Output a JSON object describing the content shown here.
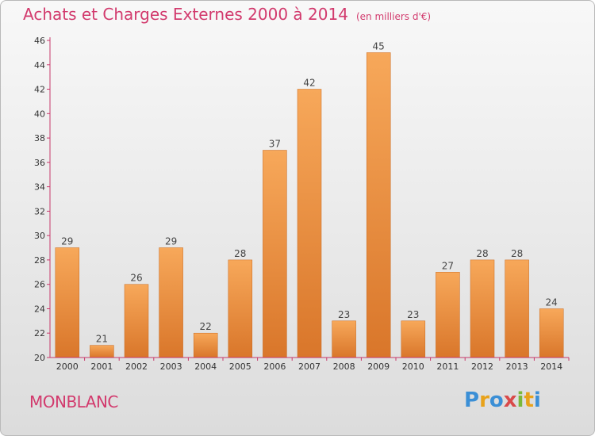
{
  "title": "Achats et Charges Externes 2000 à 2014",
  "unit_label": "(en milliers d'€)",
  "town": "MONBLANC",
  "logo": {
    "text": "Proxiti",
    "letter_colors": [
      "#3b8fd6",
      "#e8a21a",
      "#3b8fd6",
      "#d94a4a",
      "#7ab83a",
      "#e8a21a",
      "#3b8fd6"
    ]
  },
  "colors": {
    "title": "#d23a6d",
    "bar_top": "#f7a85a",
    "bar_bottom": "#d9762a",
    "axis": "#c7386a"
  },
  "chart_data": {
    "type": "bar",
    "categories": [
      "2000",
      "2001",
      "2002",
      "2003",
      "2004",
      "2005",
      "2006",
      "2007",
      "2008",
      "2009",
      "2010",
      "2011",
      "2012",
      "2013",
      "2014"
    ],
    "values": [
      29,
      21,
      26,
      29,
      22,
      28,
      37,
      42,
      23,
      45,
      23,
      27,
      28,
      28,
      24
    ],
    "ylim": [
      20,
      46
    ],
    "yticks": [
      20,
      22,
      24,
      26,
      28,
      30,
      32,
      34,
      36,
      38,
      40,
      42,
      44,
      46
    ],
    "grid": false,
    "data_labels": true
  }
}
